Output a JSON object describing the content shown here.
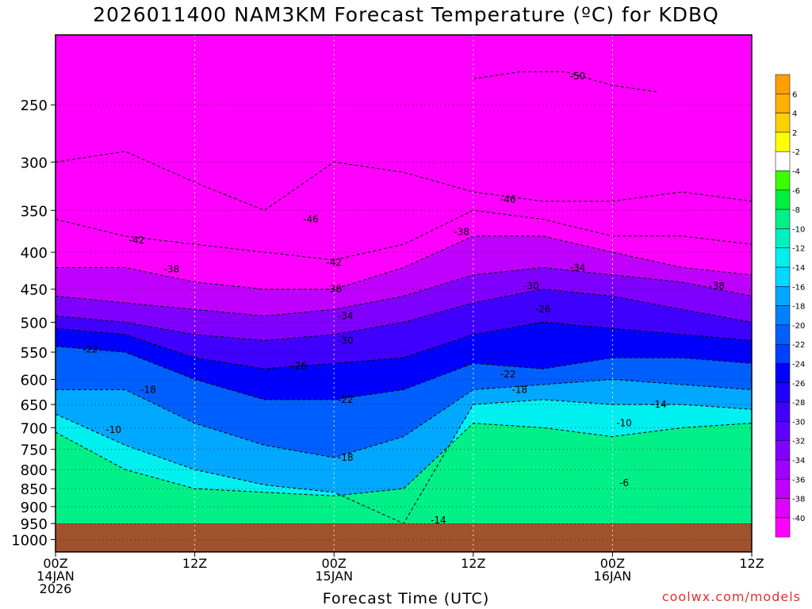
{
  "chart_data": {
    "type": "heatmap",
    "title": "2026011400 NAM3KM Forecast Temperature (ºC) for KDBQ",
    "xlabel": "Forecast Time (UTC)",
    "ylabel": "",
    "credit": "coolwx.com/models",
    "y_axis": {
      "scale": "log-pressure",
      "unit": "hPa",
      "range": [
        1040,
        200
      ],
      "ticks": [
        250,
        300,
        350,
        400,
        450,
        500,
        550,
        600,
        650,
        700,
        750,
        800,
        850,
        900,
        950,
        1000
      ]
    },
    "x_axis": {
      "range_hours": [
        0,
        60
      ],
      "ticks": [
        {
          "h": 0,
          "lines": [
            "00Z",
            "14JAN",
            "2026"
          ]
        },
        {
          "h": 12,
          "lines": [
            "12Z"
          ]
        },
        {
          "h": 24,
          "lines": [
            "00Z",
            "15JAN"
          ]
        },
        {
          "h": 36,
          "lines": [
            "12Z"
          ]
        },
        {
          "h": 48,
          "lines": [
            "00Z",
            "16JAN"
          ]
        },
        {
          "h": 60,
          "lines": [
            "12Z"
          ]
        }
      ]
    },
    "grid": true,
    "legend": {
      "placement": "right",
      "labels": [
        "6",
        "4",
        "2",
        "-2",
        "-4",
        "-6",
        "-8",
        "-10",
        "-12",
        "-14",
        "-16",
        "-18",
        "-20",
        "-22",
        "-24",
        "-26",
        "-28",
        "-30",
        "-32",
        "-34",
        "-36",
        "-38",
        "-40"
      ],
      "colors": [
        "#ffb000",
        "#ffd000",
        "#ffff00",
        "#ffffff",
        "#3cff00",
        "#00f040",
        "#00f088",
        "#00f0c0",
        "#00f0f0",
        "#00d8ff",
        "#00a8ff",
        "#0080ff",
        "#0060ff",
        "#0040ff",
        "#0000ff",
        "#2000ff",
        "#4000ff",
        "#6000ff",
        "#8000ff",
        "#a000ff",
        "#c000ff",
        "#e000ff",
        "#ff00ff"
      ]
    },
    "series": [
      {
        "name": "-10",
        "h": [
          0,
          6,
          12,
          18,
          24,
          30,
          36,
          42,
          48,
          54,
          60
        ],
        "p": [
          710,
          800,
          850,
          860,
          870,
          850,
          690,
          700,
          720,
          700,
          690
        ]
      },
      {
        "name": "-14",
        "h": [
          0,
          6,
          12,
          18,
          24,
          30,
          36,
          42,
          48,
          54,
          60
        ],
        "p": [
          670,
          740,
          800,
          840,
          860,
          950,
          650,
          640,
          650,
          650,
          660
        ]
      },
      {
        "name": "-18",
        "h": [
          0,
          6,
          12,
          18,
          24,
          30,
          36,
          42,
          48,
          54,
          60
        ],
        "p": [
          620,
          620,
          690,
          740,
          770,
          720,
          620,
          610,
          600,
          610,
          620
        ]
      },
      {
        "name": "-22",
        "h": [
          0,
          6,
          12,
          18,
          24,
          30,
          36,
          42,
          48,
          54,
          60
        ],
        "p": [
          540,
          550,
          600,
          640,
          640,
          620,
          570,
          580,
          560,
          560,
          570
        ]
      },
      {
        "name": "-26",
        "h": [
          0,
          6,
          12,
          18,
          24,
          30,
          36,
          42,
          48,
          54,
          60
        ],
        "p": [
          510,
          520,
          560,
          580,
          570,
          560,
          520,
          500,
          510,
          520,
          530
        ]
      },
      {
        "name": "-30",
        "h": [
          0,
          6,
          12,
          18,
          24,
          30,
          36,
          42,
          48,
          54,
          60
        ],
        "p": [
          490,
          500,
          520,
          530,
          520,
          500,
          470,
          450,
          460,
          480,
          500
        ]
      },
      {
        "name": "-34",
        "h": [
          0,
          6,
          12,
          18,
          24,
          30,
          36,
          42,
          48,
          54,
          60
        ],
        "p": [
          460,
          470,
          480,
          490,
          480,
          460,
          430,
          420,
          430,
          440,
          460
        ]
      },
      {
        "name": "-38",
        "h": [
          0,
          6,
          12,
          18,
          24,
          30,
          36,
          42,
          48,
          54,
          60
        ],
        "p": [
          420,
          420,
          440,
          450,
          450,
          420,
          380,
          380,
          400,
          420,
          430
        ]
      },
      {
        "name": "-42",
        "h": [
          0,
          6,
          12,
          18,
          24,
          30,
          36,
          42,
          48,
          54,
          60
        ],
        "p": [
          360,
          380,
          390,
          400,
          410,
          390,
          350,
          360,
          380,
          380,
          390
        ]
      },
      {
        "name": "-46",
        "h": [
          0,
          6,
          12,
          18,
          24,
          30,
          36,
          42,
          48,
          54,
          60
        ],
        "p": [
          300,
          290,
          320,
          350,
          300,
          310,
          330,
          340,
          340,
          330,
          340
        ]
      },
      {
        "name": "-50",
        "h": [
          36,
          40,
          44,
          48,
          52
        ],
        "p": [
          230,
          225,
          225,
          235,
          240
        ]
      }
    ],
    "annotations": [
      {
        "text": "-50",
        "h": 45,
        "p": 228
      },
      {
        "text": "-46",
        "h": 39,
        "p": 338
      },
      {
        "text": "-46",
        "h": 22,
        "p": 360
      },
      {
        "text": "-42",
        "h": 7,
        "p": 385
      },
      {
        "text": "-42",
        "h": 24,
        "p": 413
      },
      {
        "text": "-38",
        "h": 10,
        "p": 422
      },
      {
        "text": "-38",
        "h": 35,
        "p": 375
      },
      {
        "text": "-38",
        "h": 57,
        "p": 445
      },
      {
        "text": "-38",
        "h": 24,
        "p": 450
      },
      {
        "text": "-34",
        "h": 25,
        "p": 490
      },
      {
        "text": "-34",
        "h": 45,
        "p": 420
      },
      {
        "text": "-30",
        "h": 25,
        "p": 530
      },
      {
        "text": "-30",
        "h": 41,
        "p": 445
      },
      {
        "text": "-26",
        "h": 21,
        "p": 575
      },
      {
        "text": "-26",
        "h": 42,
        "p": 480
      },
      {
        "text": "-22",
        "h": 3,
        "p": 545
      },
      {
        "text": "-22",
        "h": 25,
        "p": 640
      },
      {
        "text": "-22",
        "h": 39,
        "p": 590
      },
      {
        "text": "-18",
        "h": 8,
        "p": 620
      },
      {
        "text": "-18",
        "h": 25,
        "p": 770
      },
      {
        "text": "-18",
        "h": 40,
        "p": 620
      },
      {
        "text": "-14",
        "h": 52,
        "p": 650
      },
      {
        "text": "-14",
        "h": 33,
        "p": 940
      },
      {
        "text": "-10",
        "h": 5,
        "p": 705
      },
      {
        "text": "-10",
        "h": 49,
        "p": 690
      },
      {
        "text": "-6",
        "h": 49,
        "p": 835
      }
    ]
  }
}
